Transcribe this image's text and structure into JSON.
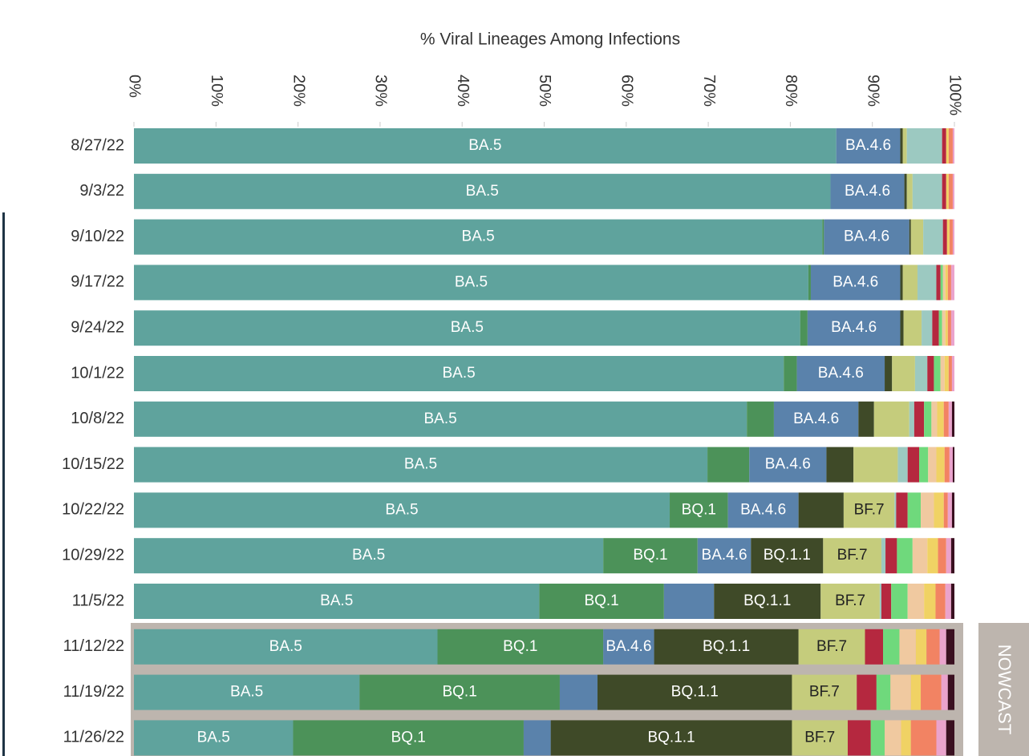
{
  "chart_data": {
    "type": "stacked-barh",
    "title": "% Viral Lineages Among Infections",
    "nowcast_label": "NOWCAST",
    "categories": [
      "8/27/22",
      "9/3/22",
      "9/10/22",
      "9/17/22",
      "9/24/22",
      "10/1/22",
      "10/8/22",
      "10/15/22",
      "10/22/22",
      "10/29/22",
      "11/5/22",
      "11/12/22",
      "11/19/22",
      "11/26/22"
    ],
    "xlim": [
      0,
      100
    ],
    "xticks": [
      {
        "value": 0,
        "label": "0%"
      },
      {
        "value": 10,
        "label": "10%"
      },
      {
        "value": 20,
        "label": "20%"
      },
      {
        "value": 30,
        "label": "30%"
      },
      {
        "value": 40,
        "label": "40%"
      },
      {
        "value": 50,
        "label": "50%"
      },
      {
        "value": 60,
        "label": "60%"
      },
      {
        "value": 70,
        "label": "70%"
      },
      {
        "value": 80,
        "label": "80%"
      },
      {
        "value": 90,
        "label": "90%"
      },
      {
        "value": 100,
        "label": "100%"
      }
    ],
    "series": [
      {
        "name": "BA.5",
        "color": "#5fa39d",
        "text_color": "#ffffff",
        "values": [
          85.6,
          84.9,
          83.9,
          82.2,
          81.2,
          79.2,
          74.7,
          69.9,
          65.3,
          57.2,
          49.4,
          37.0,
          27.5,
          19.4
        ]
      },
      {
        "name": "BQ.1",
        "color": "#4c9259",
        "text_color": "#ffffff",
        "values": [
          0,
          0,
          0.2,
          0.3,
          0.9,
          1.6,
          3.3,
          5.1,
          7.1,
          11.5,
          15.2,
          20.2,
          24.4,
          28.1
        ]
      },
      {
        "name": "BA.4.6",
        "color": "#5a82ab",
        "text_color": "#ffffff",
        "values": [
          7.8,
          9.0,
          10.4,
          10.9,
          11.3,
          10.7,
          10.3,
          9.4,
          8.6,
          6.5,
          6.1,
          6.2,
          4.6,
          3.3
        ]
      },
      {
        "name": "BQ.1.1",
        "color": "#3f4a28",
        "text_color": "#ffffff",
        "values": [
          0.3,
          0.3,
          0.2,
          0.3,
          0.4,
          0.9,
          1.9,
          3.3,
          5.5,
          8.8,
          13.0,
          17.6,
          23.7,
          29.4
        ]
      },
      {
        "name": "BF.7",
        "color": "#c5cc7c",
        "text_color": "#222222",
        "values": [
          0.5,
          0.7,
          1.5,
          1.8,
          2.2,
          2.8,
          4.3,
          5.4,
          6.2,
          7.1,
          7.2,
          8.1,
          7.9,
          6.8
        ]
      },
      {
        "color": "#9cc9c1",
        "values": [
          4.3,
          3.6,
          2.4,
          2.3,
          1.3,
          1.5,
          0.6,
          1.2,
          0.2,
          0.5,
          0.2,
          0,
          0,
          0
        ]
      },
      {
        "color": "#b5283f",
        "values": [
          0.5,
          0.5,
          0.5,
          0.5,
          0.8,
          0.8,
          1.2,
          1.4,
          1.4,
          1.4,
          1.2,
          2.2,
          2.4,
          2.8
        ]
      },
      {
        "color": "#6fd97c",
        "values": [
          0,
          0,
          0,
          0.3,
          0.4,
          0.8,
          0.9,
          1.1,
          1.6,
          1.9,
          2.0,
          2.0,
          1.7,
          1.7
        ]
      },
      {
        "color": "#f0c9a0",
        "values": [
          0,
          0,
          0,
          0.3,
          0.4,
          0.5,
          0.7,
          1.0,
          1.6,
          1.8,
          2.0,
          2.0,
          2.5,
          2.0
        ]
      },
      {
        "color": "#f0d264",
        "values": [
          0.3,
          0.3,
          0.3,
          0.3,
          0.3,
          0.5,
          0.8,
          1.0,
          1.2,
          1.3,
          1.4,
          1.3,
          1.2,
          1.2
        ]
      },
      {
        "color": "#f28363",
        "values": [
          0.5,
          0.5,
          0.4,
          0.4,
          0.4,
          0.4,
          0.6,
          0.6,
          0.5,
          1.0,
          1.2,
          1.6,
          2.5,
          3.1
        ]
      },
      {
        "color": "#eaa3cc",
        "values": [
          0.2,
          0.2,
          0.2,
          0.4,
          0.4,
          0.3,
          0.4,
          0.4,
          0.5,
          0.6,
          0.7,
          0.8,
          0.8,
          1.2
        ]
      },
      {
        "color": "#3a1020",
        "values": [
          0,
          0,
          0,
          0,
          0,
          0,
          0.3,
          0.2,
          0.3,
          0.4,
          0.4,
          1.0,
          0.8,
          1.0
        ]
      }
    ]
  }
}
